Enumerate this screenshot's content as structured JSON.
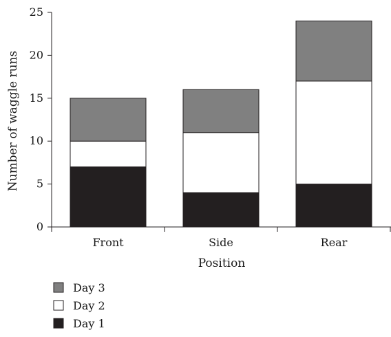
{
  "chart_data": {
    "type": "bar",
    "stacked": true,
    "categories": [
      "Front",
      "Side",
      "Rear"
    ],
    "series": [
      {
        "name": "Day 1",
        "color": "#231f20",
        "values": [
          7,
          4,
          5
        ]
      },
      {
        "name": "Day 2",
        "color": "#ffffff",
        "values": [
          3,
          7,
          12
        ]
      },
      {
        "name": "Day 3",
        "color": "#808080",
        "values": [
          5,
          5,
          7
        ]
      }
    ],
    "xlabel": "Position",
    "ylabel": "Number of waggle runs",
    "ylim": [
      0,
      25
    ],
    "yticks": [
      0,
      5,
      10,
      15,
      20,
      25
    ],
    "grid": false,
    "legend": {
      "position": "bottom-left",
      "order": [
        "Day 3",
        "Day 2",
        "Day 1"
      ]
    }
  }
}
